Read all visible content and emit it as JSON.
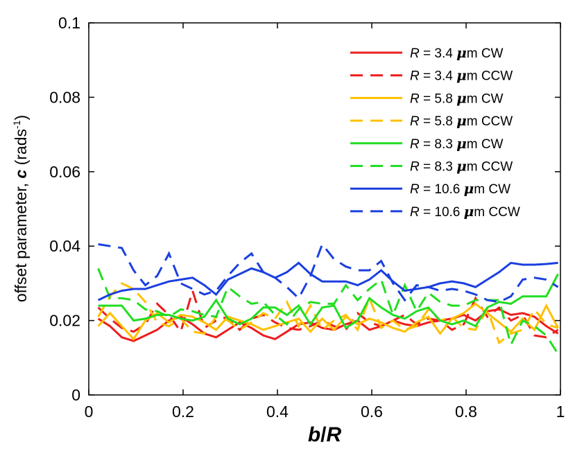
{
  "chart_data": {
    "type": "line",
    "title": "",
    "xlabel": "b/R",
    "xlabel_parts": {
      "b": "b",
      "slash": "/",
      "R": "R"
    },
    "ylabel": "offset parameter, c (rads-1)",
    "ylabel_parts": {
      "prefix": "offset parameter, ",
      "c": "c",
      "mid": " (rads",
      "sup": "-1",
      "suffix": ")"
    },
    "xlim": [
      0,
      1
    ],
    "ylim": [
      0,
      0.1
    ],
    "xticks": [
      {
        "value": 0,
        "label": "0"
      },
      {
        "value": 0.2,
        "label": "0.2"
      },
      {
        "value": 0.4,
        "label": "0.4"
      },
      {
        "value": 0.6,
        "label": "0.6"
      },
      {
        "value": 0.8,
        "label": "0.8"
      },
      {
        "value": 1,
        "label": "1"
      }
    ],
    "yticks": [
      {
        "value": 0,
        "label": "0"
      },
      {
        "value": 0.02,
        "label": "0.02"
      },
      {
        "value": 0.04,
        "label": "0.04"
      },
      {
        "value": 0.06,
        "label": "0.06"
      },
      {
        "value": 0.08,
        "label": "0.08"
      },
      {
        "value": 0.1,
        "label": "0.1"
      }
    ],
    "grid": false,
    "legend_position": "top-right",
    "x": [
      0.02,
      0.045,
      0.07,
      0.095,
      0.12,
      0.145,
      0.17,
      0.195,
      0.22,
      0.245,
      0.27,
      0.295,
      0.32,
      0.345,
      0.37,
      0.395,
      0.42,
      0.445,
      0.47,
      0.495,
      0.52,
      0.545,
      0.57,
      0.595,
      0.62,
      0.645,
      0.67,
      0.695,
      0.72,
      0.745,
      0.77,
      0.795,
      0.82,
      0.845,
      0.87,
      0.895,
      0.92,
      0.945,
      0.97,
      0.995
    ],
    "series": [
      {
        "name_parts": {
          "r": "R",
          "eq": " = 3.4 ",
          "mu": "μ",
          "rest": "m CW"
        },
        "color": "#ee1c1c",
        "dash": "solid",
        "values": [
          0.0205,
          0.0185,
          0.0155,
          0.0145,
          0.016,
          0.0175,
          0.02,
          0.021,
          0.019,
          0.0165,
          0.0155,
          0.0175,
          0.0195,
          0.018,
          0.016,
          0.015,
          0.017,
          0.019,
          0.0195,
          0.018,
          0.0175,
          0.019,
          0.02,
          0.0175,
          0.0185,
          0.02,
          0.019,
          0.0185,
          0.0195,
          0.02,
          0.0205,
          0.0215,
          0.02,
          0.0225,
          0.023,
          0.0215,
          0.022,
          0.021,
          0.0185,
          0.0165
        ]
      },
      {
        "name_parts": {
          "r": "R",
          "eq": " = 3.4 ",
          "mu": "μ",
          "rest": "m CCW"
        },
        "color": "#ee1c1c",
        "dash": "dashed",
        "values": [
          0.0235,
          0.0205,
          0.018,
          0.017,
          0.019,
          0.0245,
          0.0215,
          0.017,
          0.028,
          0.018,
          0.02,
          0.021,
          0.0175,
          0.0205,
          0.0215,
          0.0195,
          0.018,
          0.0175,
          0.0185,
          0.02,
          0.0185,
          0.0175,
          0.022,
          0.0195,
          0.0185,
          0.02,
          0.0215,
          0.019,
          0.0205,
          0.02,
          0.0175,
          0.019,
          0.026,
          0.021,
          0.0235,
          0.02,
          0.0215,
          0.016,
          0.0155,
          0.0175
        ]
      },
      {
        "name_parts": {
          "r": "R",
          "eq": " = 5.8 ",
          "mu": "μ",
          "rest": "m CW"
        },
        "color": "#ffc000",
        "dash": "solid",
        "values": [
          0.0185,
          0.022,
          0.0185,
          0.015,
          0.02,
          0.022,
          0.0195,
          0.0215,
          0.021,
          0.0195,
          0.0175,
          0.021,
          0.02,
          0.019,
          0.0175,
          0.0185,
          0.0195,
          0.0205,
          0.017,
          0.0205,
          0.0175,
          0.021,
          0.019,
          0.0205,
          0.0195,
          0.018,
          0.017,
          0.0195,
          0.021,
          0.0165,
          0.0205,
          0.022,
          0.0245,
          0.022,
          0.0195,
          0.017,
          0.0205,
          0.0175,
          0.024,
          0.018
        ]
      },
      {
        "name_parts": {
          "r": "R",
          "eq": " = 5.8 ",
          "mu": "μ",
          "rest": "m CCW"
        },
        "color": "#ffc000",
        "dash": "dashed",
        "values": [
          0.021,
          0.0265,
          0.03,
          0.0285,
          0.025,
          0.0195,
          0.0185,
          0.0205,
          0.017,
          0.0165,
          0.021,
          0.02,
          0.0175,
          0.0195,
          0.022,
          0.0205,
          0.025,
          0.0185,
          0.024,
          0.0175,
          0.02,
          0.0215,
          0.0175,
          0.026,
          0.018,
          0.02,
          0.0175,
          0.0185,
          0.023,
          0.02,
          0.021,
          0.018,
          0.0175,
          0.023,
          0.014,
          0.0165,
          0.0175,
          0.023,
          0.019,
          0.018
        ]
      },
      {
        "name_parts": {
          "r": "R",
          "eq": " = 8.3 ",
          "mu": "μ",
          "rest": "m CW"
        },
        "color": "#22dd22",
        "dash": "solid",
        "values": [
          0.024,
          0.024,
          0.024,
          0.02,
          0.0205,
          0.0215,
          0.0215,
          0.0205,
          0.02,
          0.021,
          0.0255,
          0.0205,
          0.019,
          0.0205,
          0.0235,
          0.0235,
          0.0215,
          0.024,
          0.019,
          0.0235,
          0.024,
          0.018,
          0.02,
          0.026,
          0.0235,
          0.0215,
          0.0205,
          0.0225,
          0.0235,
          0.02,
          0.019,
          0.02,
          0.0185,
          0.0235,
          0.025,
          0.0245,
          0.0265,
          0.0265,
          0.0265,
          0.0325
        ]
      },
      {
        "name_parts": {
          "r": "R",
          "eq": " = 8.3 ",
          "mu": "μ",
          "rest": "m CCW"
        },
        "color": "#22dd22",
        "dash": "dashed",
        "values": [
          0.034,
          0.026,
          0.026,
          0.0255,
          0.023,
          0.0225,
          0.021,
          0.023,
          0.0225,
          0.0215,
          0.021,
          0.029,
          0.0265,
          0.0245,
          0.025,
          0.0215,
          0.019,
          0.023,
          0.025,
          0.0245,
          0.0245,
          0.0295,
          0.0255,
          0.0285,
          0.031,
          0.0215,
          0.0295,
          0.0225,
          0.0275,
          0.025,
          0.024,
          0.024,
          0.0255,
          0.0255,
          0.0255,
          0.0135,
          0.02,
          0.0185,
          0.016,
          0.011
        ]
      },
      {
        "name_parts": {
          "r": "R",
          "eq": " = 10.6 ",
          "mu": "μ",
          "rest": "m CW"
        },
        "color": "#1a3fe0",
        "dash": "solid",
        "values": [
          0.0255,
          0.027,
          0.028,
          0.0285,
          0.0285,
          0.0295,
          0.0305,
          0.031,
          0.0315,
          0.0295,
          0.027,
          0.031,
          0.0325,
          0.034,
          0.033,
          0.0315,
          0.033,
          0.0355,
          0.0325,
          0.0305,
          0.0305,
          0.0305,
          0.0295,
          0.031,
          0.0335,
          0.0305,
          0.028,
          0.0285,
          0.029,
          0.03,
          0.0305,
          0.03,
          0.029,
          0.031,
          0.033,
          0.0355,
          0.035,
          0.035,
          0.0352,
          0.0355
        ]
      },
      {
        "name_parts": {
          "r": "R",
          "eq": " = 10.6 ",
          "mu": "μ",
          "rest": "m CCW"
        },
        "color": "#1a3fe0",
        "dash": "dashed",
        "values": [
          0.0405,
          0.04,
          0.0395,
          0.0335,
          0.0295,
          0.032,
          0.038,
          0.03,
          0.0285,
          0.027,
          0.028,
          0.032,
          0.0355,
          0.038,
          0.033,
          0.0315,
          0.029,
          0.026,
          0.032,
          0.0405,
          0.0365,
          0.0345,
          0.0335,
          0.0335,
          0.036,
          0.03,
          0.0255,
          0.0295,
          0.029,
          0.028,
          0.0285,
          0.028,
          0.027,
          0.0255,
          0.025,
          0.0265,
          0.031,
          0.0315,
          0.031,
          0.029
        ]
      }
    ]
  }
}
